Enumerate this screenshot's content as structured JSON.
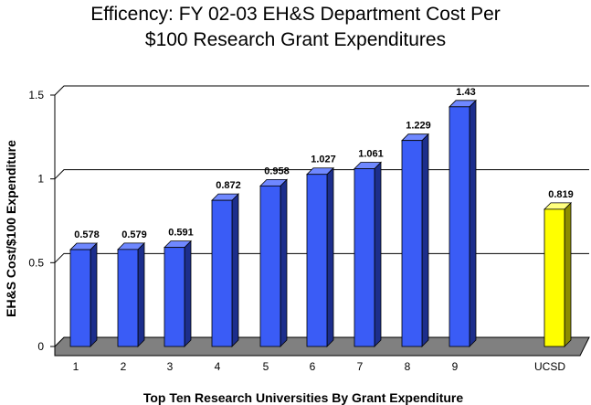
{
  "chart_data": {
    "type": "bar",
    "title_line1": "Efficency: FY 02-03 EH&S Department Cost Per",
    "title_line2": "$100 Research Grant Expenditures",
    "xlabel": "Top Ten Research Universities By Grant Expenditure",
    "ylabel": "EH&S Cost/$100 Expenditure",
    "ylim": [
      0,
      1.5
    ],
    "yticks": [
      "0",
      "0.5",
      "1",
      "1.5"
    ],
    "categories": [
      "1",
      "2",
      "3",
      "4",
      "5",
      "6",
      "7",
      "8",
      "9",
      "UCSD"
    ],
    "values": [
      0.578,
      0.579,
      0.591,
      0.872,
      0.958,
      1.027,
      1.061,
      1.229,
      1.43,
      0.819
    ],
    "value_labels": [
      "0.578",
      "0.579",
      "0.591",
      "0.872",
      "0.958",
      "1.027",
      "1.061",
      "1.229",
      "1.43",
      "0.819"
    ],
    "grid": true,
    "colors": {
      "bar_front": "#3a5cf6",
      "bar_side": "#1c2e8c",
      "bar_top": "#6f88ff",
      "highlight_front": "#ffff00",
      "highlight_side": "#8c8c00",
      "highlight_top": "#ffff80",
      "floor": "#808080"
    },
    "highlight_category": "UCSD"
  }
}
